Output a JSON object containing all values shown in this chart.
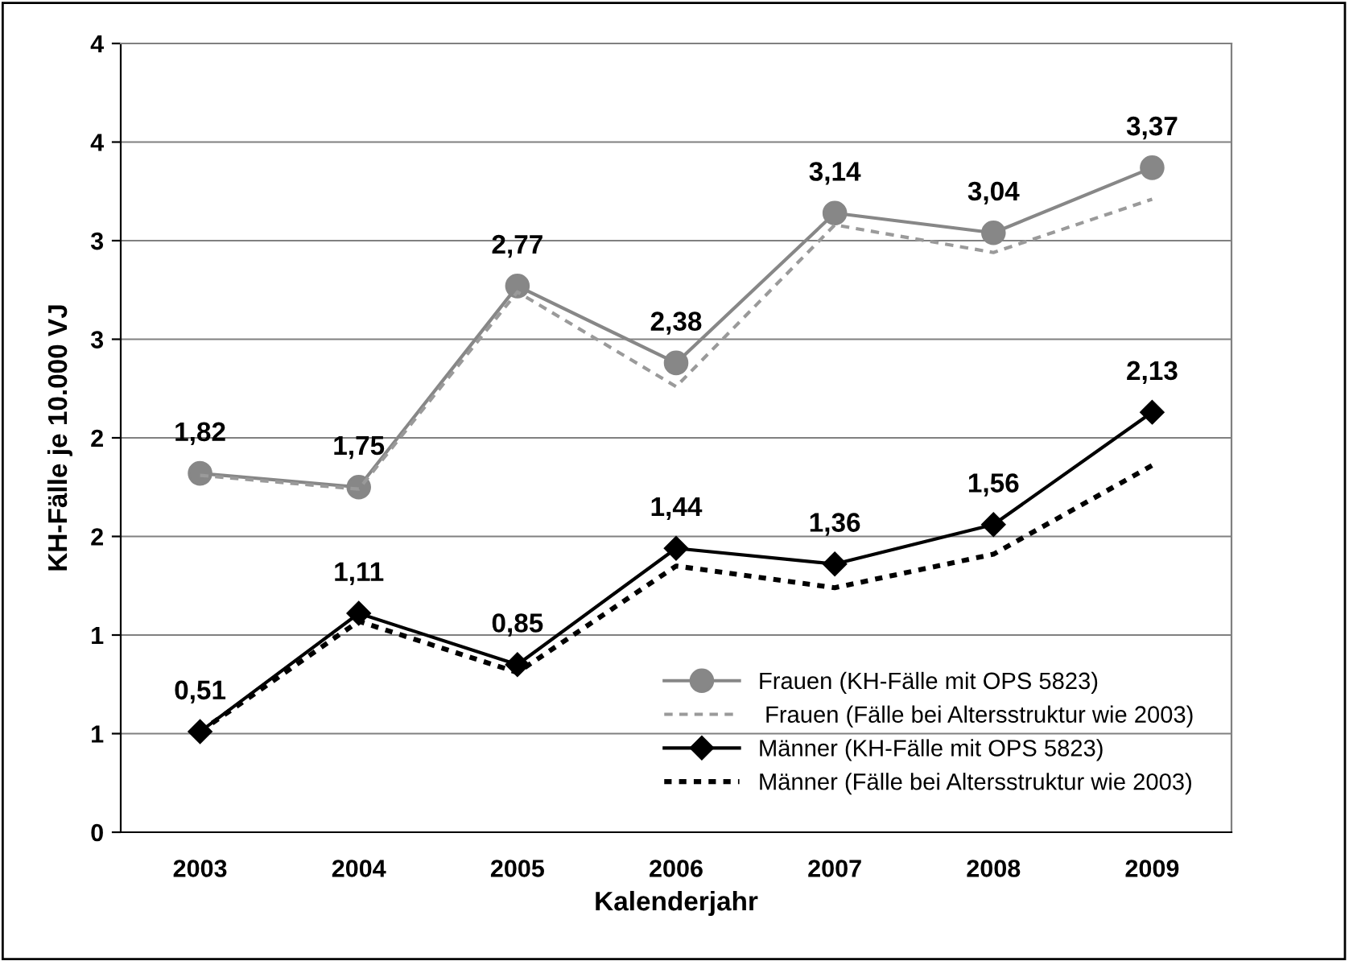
{
  "chart_data": {
    "type": "line",
    "xlabel": "Kalenderjahr",
    "ylabel": "KH-Fälle je 10.000 VJ",
    "categories": [
      "2003",
      "2004",
      "2005",
      "2006",
      "2007",
      "2008",
      "2009"
    ],
    "series": [
      {
        "name": "Frauen (KH-Fälle mit OPS 5823)",
        "color": "#878787",
        "marker": "circle",
        "line_style": "solid",
        "values": [
          1.82,
          1.75,
          2.77,
          2.38,
          3.14,
          3.04,
          3.37
        ],
        "value_labels": [
          "1,82",
          "1,75",
          "2,77",
          "2,38",
          "3,14",
          "3,04",
          "3,37"
        ]
      },
      {
        "name": " Frauen (Fälle bei Altersstruktur wie 2003)",
        "color": "#9a9a9a",
        "marker": "none",
        "line_style": "dashed",
        "values": [
          1.81,
          1.74,
          2.74,
          2.26,
          3.08,
          2.94,
          3.21
        ]
      },
      {
        "name": "Männer (KH-Fälle mit OPS 5823)",
        "color": "#000000",
        "marker": "diamond",
        "line_style": "solid",
        "values": [
          0.51,
          1.11,
          0.85,
          1.44,
          1.36,
          1.56,
          2.13
        ],
        "value_labels": [
          "0,51",
          "1,11",
          "0,85",
          "1,44",
          "1,36",
          "1,56",
          "2,13"
        ]
      },
      {
        "name": "Männer (Fälle bei Altersstruktur wie 2003)",
        "color": "#000000",
        "marker": "none",
        "line_style": "dotted",
        "values": [
          0.51,
          1.07,
          0.81,
          1.35,
          1.24,
          1.41,
          1.86
        ]
      }
    ],
    "ylim": [
      0,
      4
    ],
    "yticks": [
      0,
      {
        "value": 0.5,
        "label": "1"
      },
      1,
      {
        "value": 1.5,
        "label": "2"
      },
      2,
      {
        "value": 2.5,
        "label": "3"
      },
      3,
      {
        "value": 3.5,
        "label": "4"
      },
      4
    ],
    "grid": "y",
    "legend": "bottom right"
  }
}
